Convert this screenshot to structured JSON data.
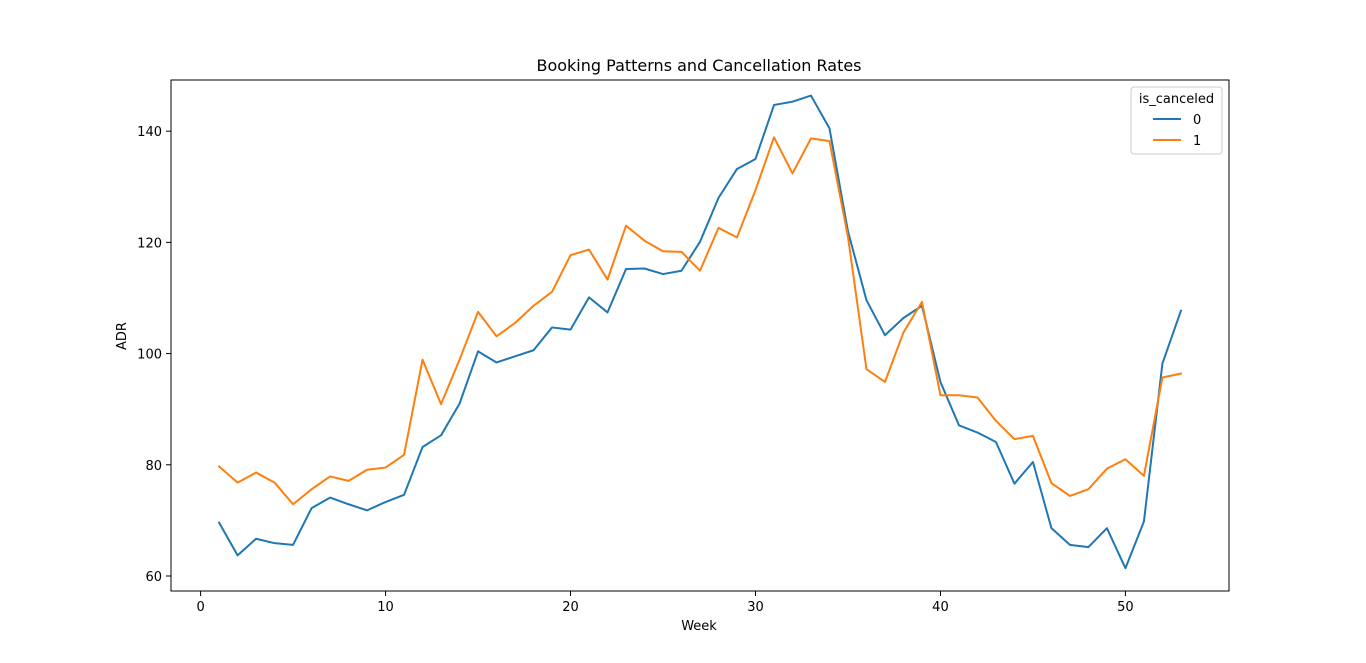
{
  "chart_data": {
    "type": "line",
    "title": "Booking Patterns and Cancellation Rates",
    "xlabel": "Week",
    "ylabel": "ADR",
    "xlim": [
      -1.6,
      55.6
    ],
    "ylim": [
      57.3,
      149.2
    ],
    "xticks": [
      0,
      10,
      20,
      30,
      40,
      50
    ],
    "yticks": [
      60,
      80,
      100,
      120,
      140
    ],
    "grid": false,
    "legend": {
      "title": "is_canceled",
      "placement": "top-right"
    },
    "x": [
      1,
      2,
      3,
      4,
      5,
      6,
      7,
      8,
      9,
      10,
      11,
      12,
      13,
      14,
      15,
      16,
      17,
      18,
      19,
      20,
      21,
      22,
      23,
      24,
      25,
      26,
      27,
      28,
      29,
      30,
      31,
      32,
      33,
      34,
      35,
      36,
      37,
      38,
      39,
      40,
      41,
      42,
      43,
      44,
      45,
      46,
      47,
      48,
      49,
      50,
      51,
      52,
      53
    ],
    "series": [
      {
        "name": "0",
        "color": "#1f77b4",
        "values": [
          69.6,
          63.7,
          66.7,
          65.9,
          65.6,
          72.2,
          74.1,
          72.9,
          71.8,
          73.3,
          74.6,
          83.2,
          85.3,
          91.0,
          100.4,
          98.4,
          99.5,
          100.6,
          104.7,
          104.3,
          110.1,
          107.4,
          115.2,
          115.3,
          114.3,
          114.9,
          120.1,
          128.0,
          133.2,
          135.0,
          144.7,
          145.3,
          146.4,
          140.5,
          122.0,
          109.6,
          103.3,
          106.4,
          108.6,
          94.9,
          87.1,
          85.8,
          84.1,
          76.6,
          80.5,
          68.6,
          65.6,
          65.2,
          68.6,
          61.4,
          69.8,
          98.2,
          107.7
        ]
      },
      {
        "name": "1",
        "color": "#ff7f0e",
        "values": [
          79.7,
          76.8,
          78.6,
          76.8,
          72.9,
          75.6,
          77.9,
          77.1,
          79.1,
          79.5,
          81.8,
          98.9,
          90.9,
          98.9,
          107.5,
          103.1,
          105.5,
          108.6,
          111.1,
          117.7,
          118.7,
          113.3,
          123.0,
          120.3,
          118.4,
          118.3,
          114.9,
          122.6,
          120.9,
          129.4,
          138.9,
          132.4,
          138.7,
          138.2,
          121.0,
          97.2,
          94.9,
          103.8,
          109.3,
          92.5,
          92.5,
          92.1,
          87.9,
          84.6,
          85.2,
          76.7,
          74.4,
          75.6,
          79.3,
          81.0,
          78.0,
          95.7,
          96.4
        ]
      }
    ]
  }
}
